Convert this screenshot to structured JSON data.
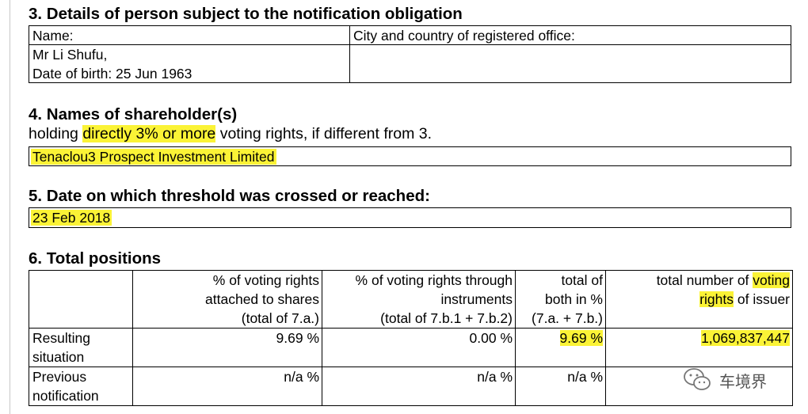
{
  "section3": {
    "heading": "3. Details of person subject to the notification obligation",
    "name_label": "Name:",
    "name_value": "Mr Li Shufu,",
    "dob": "Date of birth: 25 Jun 1963",
    "city_label": "City and country of registered office:"
  },
  "section4": {
    "heading": "4. Names of shareholder(s)",
    "subheading": "holding directly 3% or more voting rights, if different from 3.",
    "value": "Tenaclou3 Prospect Investment Limited"
  },
  "section5": {
    "heading": "5. Date on which threshold was crossed or reached:",
    "value": "23 Feb 2018"
  },
  "section6": {
    "heading": "6. Total positions",
    "columns": [
      [
        "% of voting rights",
        "attached to shares",
        "(total of 7.a.)"
      ],
      [
        "% of voting rights through",
        "instruments",
        "(total of 7.b.1 + 7.b.2)"
      ],
      [
        "total of",
        "both in %",
        "(7.a. + 7.b.)"
      ],
      [
        "total number of voting",
        "rights of issuer",
        ""
      ]
    ],
    "rows": [
      {
        "label": [
          "Resulting",
          "situation"
        ],
        "values": [
          "9.69 %",
          "0.00 %",
          "9.69 %",
          "1,069,837,447"
        ]
      },
      {
        "label": [
          "Previous",
          "notification"
        ],
        "values": [
          "n/a %",
          "n/a %",
          "n/a %",
          ""
        ]
      }
    ]
  },
  "watermark": {
    "text": "车境界",
    "icon": "wechat-icon"
  },
  "colors": {
    "highlight": "#fbf336"
  }
}
